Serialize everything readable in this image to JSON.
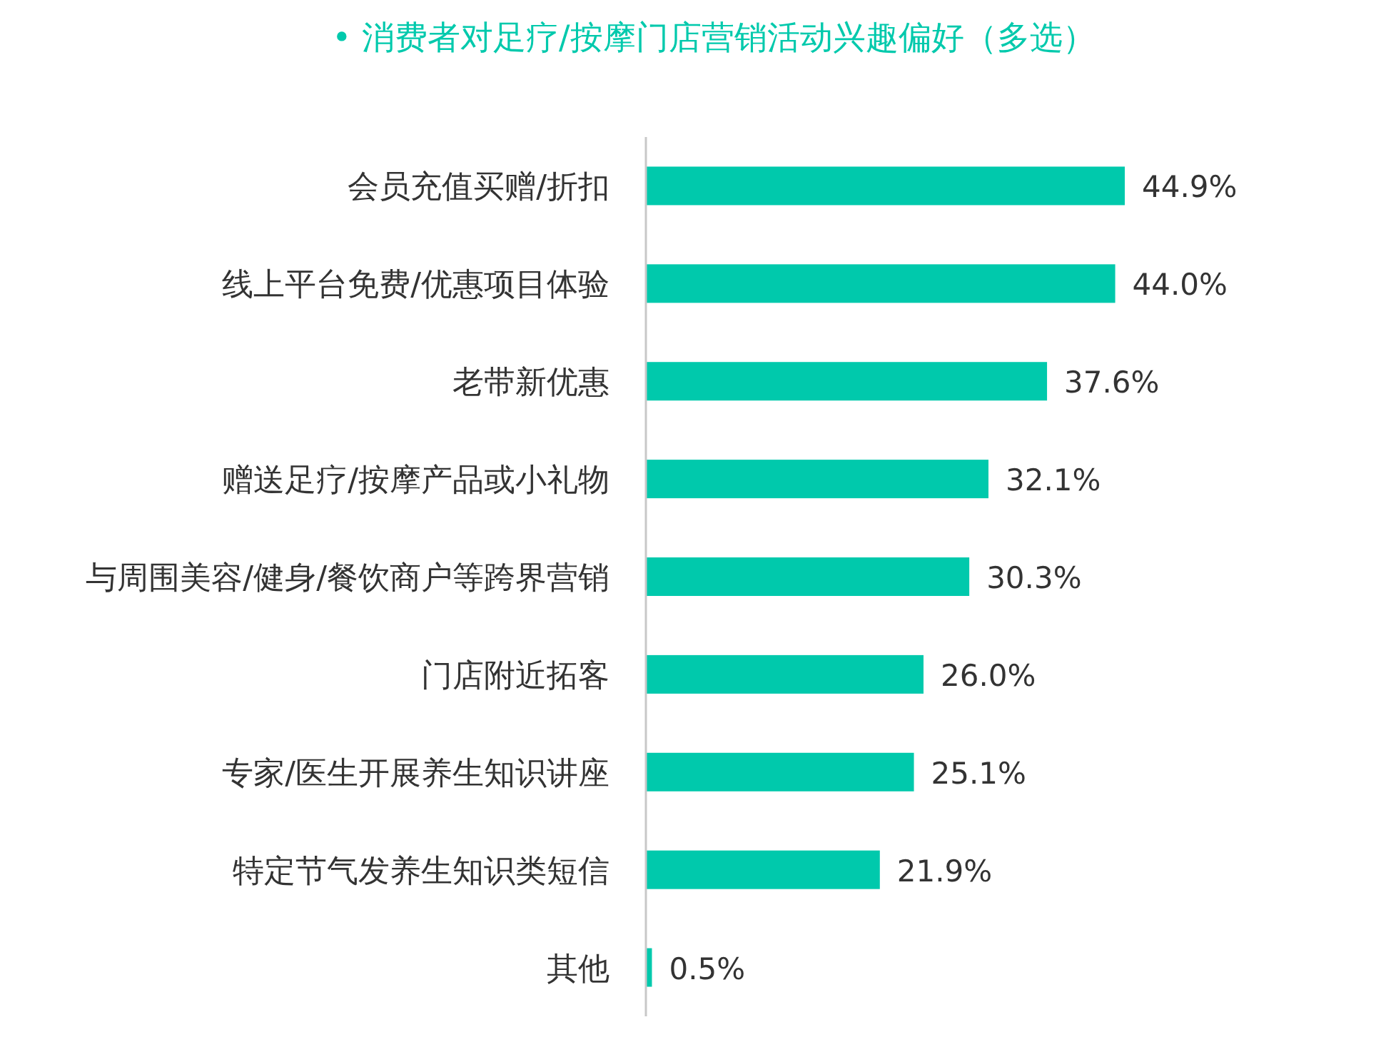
{
  "chart_data": {
    "type": "bar",
    "orientation": "horizontal",
    "title": "• 消费者对足疗/按摩门店营销活动兴趣偏好（多选）",
    "categories": [
      "会员充值买赠/折扣",
      "线上平台免费/优惠项目体验",
      "老带新优惠",
      "赠送足疗/按摩产品或小礼物",
      "与周围美容/健身/餐饮商户等跨界营销",
      "门店附近拓客",
      "专家/医生开展养生知识讲座",
      "特定节气发养生知识类短信",
      "其他"
    ],
    "values": [
      44.9,
      44.0,
      37.6,
      32.1,
      30.3,
      26.0,
      25.1,
      21.9,
      0.5
    ],
    "value_labels": [
      "44.9%",
      "44.0%",
      "37.6%",
      "32.1%",
      "30.3%",
      "26.0%",
      "25.1%",
      "21.9%",
      "0.5%"
    ],
    "color": "#00c9ac"
  }
}
